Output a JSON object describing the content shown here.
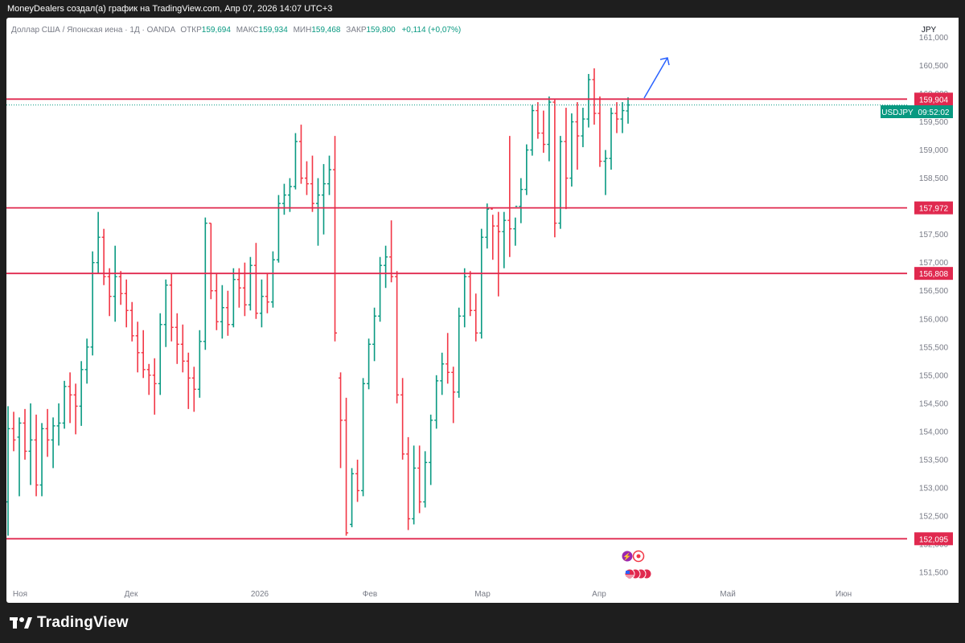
{
  "header": {
    "caption": "MoneyDealers создал(а) график на TradingView.com, Апр 07, 2026 14:07 UTC+3"
  },
  "legend": {
    "symbol": "Доллар США / Японская иена · 1Д · OANDA",
    "open_label": "ОТКР",
    "open": "159,694",
    "high_label": "МАКС",
    "high": "159,934",
    "low_label": "МИН",
    "low": "159,468",
    "close_label": "ЗАКР",
    "close": "159,800",
    "change": "+0,114 (+0,07%)"
  },
  "price_scale": {
    "currency": "JPY",
    "ticks": [
      "161,000",
      "160,500",
      "160,000",
      "159,500",
      "159,000",
      "158,500",
      "158,000",
      "157,500",
      "157,000",
      "156,500",
      "156,000",
      "155,500",
      "155,000",
      "154,500",
      "154,000",
      "153,500",
      "153,000",
      "152,500",
      "152,000",
      "151,500"
    ]
  },
  "time_scale": {
    "labels": [
      "Ноя",
      "Дек",
      "2026",
      "Фев",
      "Мар",
      "Апр",
      "Май",
      "Июн"
    ]
  },
  "price_badge": {
    "symbol": "USDJPY",
    "countdown": "09:52:02"
  },
  "chart_data": {
    "type": "ohlc-bar",
    "symbol": "USDJPY",
    "timeframe": "1D",
    "ylim": [
      151.3,
      161.35
    ],
    "up_color": "#089981",
    "down_color": "#f23645",
    "bars": [
      [
        152.75,
        154.45,
        152.15,
        154.05
      ],
      [
        154.05,
        154.35,
        153.65,
        153.85
      ],
      [
        153.9,
        154.25,
        152.85,
        154.15
      ],
      [
        154.15,
        154.4,
        153.5,
        153.65
      ],
      [
        153.65,
        154.5,
        153.05,
        153.85
      ],
      [
        153.85,
        154.3,
        152.85,
        153.05
      ],
      [
        153.05,
        154.15,
        152.85,
        154.05
      ],
      [
        154.05,
        154.4,
        153.55,
        153.85
      ],
      [
        153.85,
        154.25,
        153.35,
        154.1
      ],
      [
        154.1,
        154.5,
        153.75,
        154.15
      ],
      [
        154.15,
        154.9,
        154.05,
        154.8
      ],
      [
        154.8,
        155.05,
        154.15,
        154.65
      ],
      [
        154.65,
        154.85,
        153.95,
        154.45
      ],
      [
        154.45,
        155.25,
        154.1,
        155.1
      ],
      [
        155.1,
        155.65,
        154.85,
        155.5
      ],
      [
        155.5,
        157.2,
        155.35,
        157.0
      ],
      [
        157.0,
        157.9,
        156.8,
        157.45
      ],
      [
        157.45,
        157.6,
        156.6,
        156.75
      ],
      [
        156.75,
        156.9,
        156.05,
        156.4
      ],
      [
        156.4,
        157.3,
        155.95,
        156.75
      ],
      [
        156.75,
        156.85,
        156.25,
        156.45
      ],
      [
        156.45,
        156.7,
        155.85,
        156.15
      ],
      [
        156.15,
        156.3,
        155.6,
        155.7
      ],
      [
        155.7,
        155.95,
        155.05,
        155.4
      ],
      [
        155.4,
        155.8,
        154.95,
        155.1
      ],
      [
        155.1,
        155.2,
        154.65,
        155.0
      ],
      [
        155.0,
        155.3,
        154.3,
        154.85
      ],
      [
        154.85,
        156.1,
        154.65,
        155.9
      ],
      [
        155.9,
        156.7,
        155.5,
        156.6
      ],
      [
        156.6,
        156.8,
        155.6,
        155.85
      ],
      [
        155.85,
        156.1,
        155.2,
        155.55
      ],
      [
        155.55,
        155.9,
        155.05,
        155.25
      ],
      [
        155.25,
        155.4,
        154.4,
        154.95
      ],
      [
        154.95,
        155.15,
        154.35,
        154.75
      ],
      [
        154.75,
        155.8,
        154.6,
        155.6
      ],
      [
        155.6,
        157.8,
        155.45,
        157.7
      ],
      [
        157.7,
        157.7,
        156.35,
        156.5
      ],
      [
        156.5,
        156.8,
        155.8,
        155.95
      ],
      [
        155.95,
        156.6,
        155.65,
        156.2
      ],
      [
        156.2,
        156.5,
        155.7,
        155.9
      ],
      [
        155.9,
        156.9,
        155.85,
        156.7
      ],
      [
        156.7,
        156.9,
        156.2,
        156.55
      ],
      [
        156.55,
        157.0,
        156.05,
        156.25
      ],
      [
        156.25,
        157.1,
        156.15,
        156.95
      ],
      [
        156.95,
        157.35,
        156.0,
        156.1
      ],
      [
        156.1,
        156.7,
        155.85,
        156.4
      ],
      [
        156.4,
        156.8,
        156.1,
        156.3
      ],
      [
        156.3,
        157.2,
        156.2,
        157.05
      ],
      [
        157.05,
        158.2,
        157.0,
        158.05
      ],
      [
        158.05,
        158.4,
        157.85,
        158.2
      ],
      [
        158.2,
        158.5,
        157.9,
        158.35
      ],
      [
        158.35,
        159.3,
        158.3,
        159.15
      ],
      [
        159.15,
        159.45,
        158.4,
        158.5
      ],
      [
        158.5,
        158.8,
        158.2,
        158.4
      ],
      [
        158.4,
        158.9,
        157.9,
        158.05
      ],
      [
        158.05,
        158.5,
        157.3,
        158.2
      ],
      [
        158.2,
        158.75,
        157.5,
        158.4
      ],
      [
        158.4,
        158.9,
        158.2,
        158.65
      ],
      [
        158.65,
        159.25,
        155.6,
        155.75
      ],
      [
        154.95,
        155.05,
        153.35,
        154.2
      ],
      [
        154.2,
        154.6,
        152.15,
        152.2
      ],
      [
        152.35,
        153.35,
        152.3,
        153.25
      ],
      [
        153.25,
        153.5,
        152.75,
        152.95
      ],
      [
        152.95,
        154.95,
        152.85,
        154.85
      ],
      [
        154.85,
        155.65,
        154.75,
        155.55
      ],
      [
        155.55,
        156.2,
        155.25,
        156.05
      ],
      [
        156.05,
        157.1,
        155.95,
        156.95
      ],
      [
        156.95,
        157.3,
        156.55,
        157.1
      ],
      [
        157.1,
        157.75,
        156.65,
        156.75
      ],
      [
        156.75,
        156.85,
        154.5,
        154.65
      ],
      [
        154.65,
        154.95,
        153.5,
        153.6
      ],
      [
        153.6,
        153.9,
        152.25,
        152.45
      ],
      [
        152.45,
        153.75,
        152.35,
        153.35
      ],
      [
        153.35,
        153.75,
        152.55,
        152.75
      ],
      [
        152.75,
        153.65,
        152.65,
        153.45
      ],
      [
        153.45,
        154.3,
        153.05,
        154.2
      ],
      [
        154.2,
        155.0,
        154.05,
        154.9
      ],
      [
        154.9,
        155.4,
        154.65,
        155.2
      ],
      [
        155.2,
        155.75,
        154.85,
        155.05
      ],
      [
        155.05,
        155.15,
        154.15,
        154.7
      ],
      [
        154.7,
        156.2,
        154.6,
        156.05
      ],
      [
        156.05,
        156.9,
        155.85,
        156.75
      ],
      [
        156.75,
        156.85,
        156.05,
        156.15
      ],
      [
        156.15,
        156.45,
        155.6,
        155.75
      ],
      [
        155.75,
        157.6,
        155.65,
        157.45
      ],
      [
        157.45,
        158.05,
        157.25,
        157.95
      ],
      [
        157.95,
        157.85,
        157.05,
        157.65
      ],
      [
        157.65,
        157.9,
        156.4,
        157.55
      ],
      [
        157.55,
        157.9,
        156.9,
        157.75
      ],
      [
        157.75,
        159.25,
        157.1,
        157.6
      ],
      [
        157.6,
        157.8,
        157.3,
        158.0
      ],
      [
        158.0,
        158.5,
        157.7,
        158.3
      ],
      [
        158.3,
        159.1,
        158.2,
        159.0
      ],
      [
        159.0,
        159.8,
        158.9,
        159.7
      ],
      [
        159.7,
        159.85,
        159.2,
        159.3
      ],
      [
        159.3,
        159.7,
        158.95,
        159.1
      ],
      [
        159.1,
        159.95,
        158.8,
        159.85
      ],
      [
        159.85,
        159.9,
        157.45,
        157.7
      ],
      [
        157.7,
        159.25,
        157.6,
        159.15
      ],
      [
        159.15,
        159.75,
        157.95,
        158.5
      ],
      [
        158.5,
        159.65,
        158.35,
        159.5
      ],
      [
        159.5,
        159.85,
        158.65,
        159.25
      ],
      [
        159.25,
        159.75,
        159.05,
        159.55
      ],
      [
        159.55,
        160.35,
        159.4,
        160.25
      ],
      [
        160.25,
        160.45,
        159.45,
        159.65
      ],
      [
        159.65,
        159.95,
        158.7,
        158.8
      ],
      [
        158.8,
        159.0,
        158.2,
        158.85
      ],
      [
        158.85,
        159.75,
        158.65,
        159.65
      ],
      [
        159.65,
        159.85,
        159.3,
        159.55
      ],
      [
        159.55,
        159.85,
        159.3,
        159.7
      ],
      [
        159.694,
        159.934,
        159.468,
        159.8
      ]
    ],
    "levels": [
      {
        "label": "159,904",
        "value": 159.904,
        "color": "#e0294f"
      },
      {
        "label": "157,972",
        "value": 157.972,
        "color": "#e0294f"
      },
      {
        "label": "156,808",
        "value": 156.808,
        "color": "#e0294f"
      },
      {
        "label": "152,095",
        "value": 152.095,
        "color": "#e0294f"
      }
    ],
    "last_price": 159.8,
    "arrow_color": "#2962ff",
    "arrow_direction": "up"
  }
}
